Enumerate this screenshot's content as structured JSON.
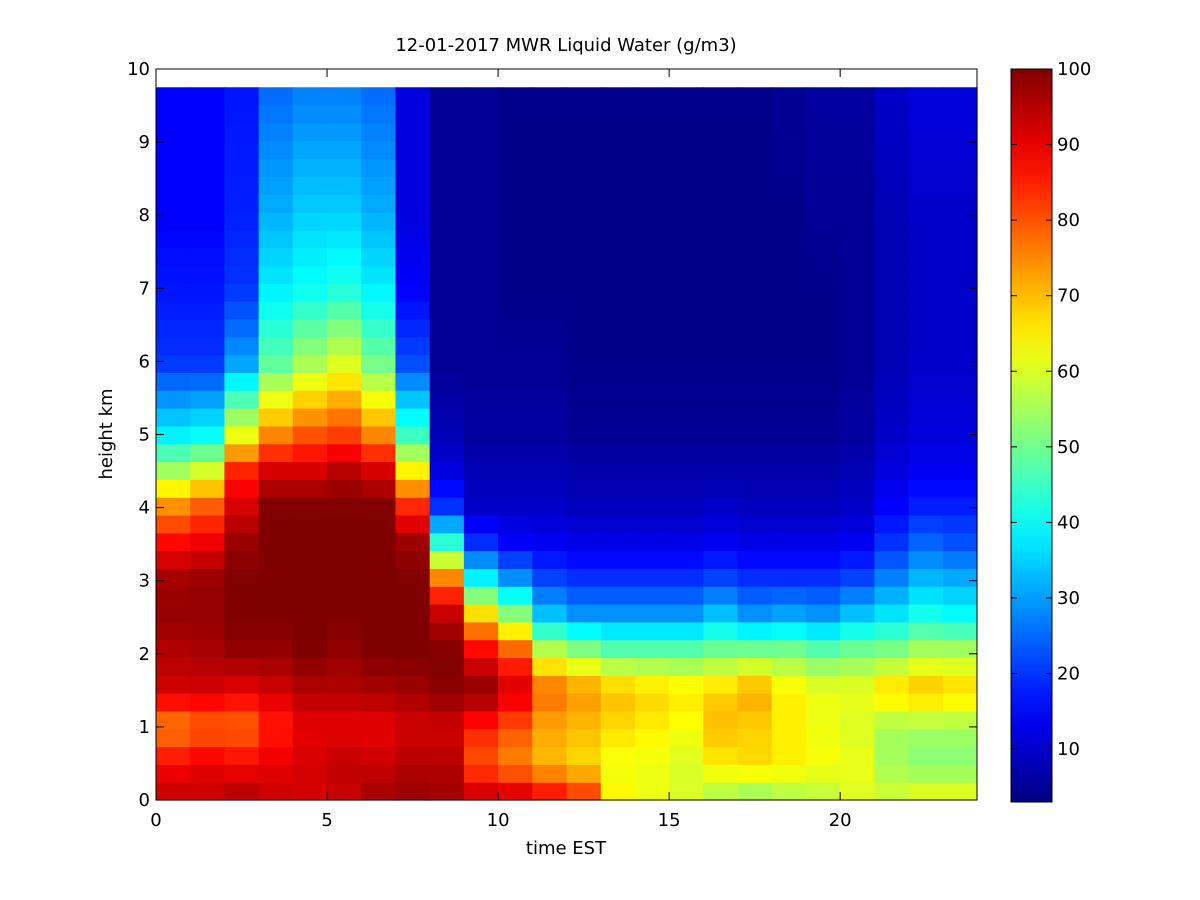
{
  "chart_data": {
    "type": "heatmap",
    "title": "12-01-2017 MWR Liquid Water (g/m3)",
    "xlabel": "time EST",
    "ylabel": "height km",
    "xlim": [
      0,
      24
    ],
    "ylim": [
      0,
      10
    ],
    "x_ticks": [
      0,
      5,
      10,
      15,
      20
    ],
    "y_ticks": [
      0,
      1,
      2,
      3,
      4,
      5,
      6,
      7,
      8,
      9,
      10
    ],
    "colorbar": {
      "colormap": "jet",
      "range": [
        3,
        100
      ],
      "ticks": [
        10,
        20,
        30,
        40,
        50,
        60,
        70,
        80,
        90,
        100
      ]
    },
    "x_centers": [
      0.5,
      1.5,
      2.5,
      3.5,
      4.5,
      5.5,
      6.5,
      7.5,
      8.5,
      9.5,
      10.5,
      11.5,
      12.5,
      13.5,
      14.5,
      15.5,
      16.5,
      17.5,
      18.5,
      19.5,
      20.5,
      21.5,
      22.5,
      23.5
    ],
    "y_extent": [
      0,
      9.75
    ],
    "profile_heights": [
      0,
      0.5,
      1,
      1.5,
      2,
      2.5,
      3,
      3.5,
      4,
      4.5,
      5,
      6,
      7,
      8,
      9.75
    ],
    "columns": [
      [
        94,
        88,
        75,
        92,
        95,
        98,
        97,
        88,
        75,
        55,
        38,
        20,
        17,
        15,
        15
      ],
      [
        93,
        90,
        78,
        92,
        96,
        98,
        98,
        90,
        80,
        60,
        40,
        20,
        17,
        15,
        15
      ],
      [
        96,
        88,
        78,
        90,
        98,
        100,
        100,
        98,
        92,
        85,
        62,
        30,
        20,
        18,
        17
      ],
      [
        93,
        90,
        85,
        92,
        98,
        100,
        100,
        100,
        100,
        92,
        75,
        48,
        38,
        32,
        25
      ],
      [
        92,
        92,
        90,
        95,
        100,
        100,
        100,
        100,
        100,
        92,
        80,
        55,
        40,
        35,
        27
      ],
      [
        93,
        94,
        90,
        95,
        98,
        100,
        100,
        100,
        100,
        95,
        82,
        60,
        42,
        35,
        27
      ],
      [
        97,
        93,
        90,
        96,
        100,
        100,
        100,
        100,
        100,
        92,
        75,
        50,
        38,
        32,
        25
      ],
      [
        98,
        95,
        92,
        97,
        100,
        100,
        100,
        98,
        85,
        65,
        45,
        22,
        15,
        12,
        12
      ],
      [
        97,
        95,
        92,
        99,
        100,
        95,
        78,
        45,
        20,
        12,
        8,
        5,
        5,
        5,
        5
      ],
      [
        95,
        80,
        85,
        99,
        90,
        70,
        40,
        20,
        10,
        8,
        6,
        5,
        5,
        5,
        5
      ],
      [
        95,
        75,
        80,
        92,
        82,
        55,
        30,
        15,
        10,
        8,
        6,
        5,
        4,
        4,
        4
      ],
      [
        90,
        70,
        72,
        78,
        60,
        35,
        22,
        14,
        10,
        8,
        6,
        5,
        4,
        4,
        4
      ],
      [
        85,
        67,
        70,
        74,
        55,
        30,
        20,
        13,
        9,
        7,
        5,
        4,
        4,
        4,
        4
      ],
      [
        65,
        62,
        67,
        70,
        50,
        30,
        20,
        13,
        9,
        7,
        5,
        4,
        4,
        4,
        4
      ],
      [
        62,
        62,
        65,
        68,
        50,
        30,
        20,
        13,
        9,
        7,
        5,
        4,
        4,
        4,
        4
      ],
      [
        60,
        60,
        63,
        66,
        50,
        30,
        20,
        13,
        9,
        7,
        5,
        4,
        4,
        4,
        4
      ],
      [
        55,
        65,
        70,
        68,
        52,
        35,
        22,
        14,
        10,
        7,
        5,
        4,
        4,
        4,
        4
      ],
      [
        52,
        67,
        68,
        72,
        53,
        30,
        20,
        13,
        9,
        7,
        5,
        4,
        4,
        4,
        4
      ],
      [
        55,
        65,
        65,
        65,
        53,
        32,
        20,
        13,
        9,
        7,
        5,
        4,
        4,
        4,
        5
      ],
      [
        57,
        63,
        62,
        62,
        50,
        30,
        20,
        13,
        9,
        7,
        5,
        4,
        4,
        5,
        6
      ],
      [
        60,
        62,
        60,
        62,
        52,
        35,
        22,
        14,
        10,
        8,
        6,
        5,
        5,
        5,
        6
      ],
      [
        60,
        55,
        55,
        68,
        53,
        38,
        28,
        20,
        15,
        12,
        10,
        8,
        8,
        8,
        10
      ],
      [
        63,
        52,
        55,
        70,
        57,
        42,
        33,
        25,
        18,
        14,
        12,
        10,
        10,
        10,
        12
      ],
      [
        63,
        52,
        55,
        68,
        57,
        40,
        32,
        23,
        18,
        14,
        12,
        10,
        10,
        10,
        12
      ]
    ]
  }
}
